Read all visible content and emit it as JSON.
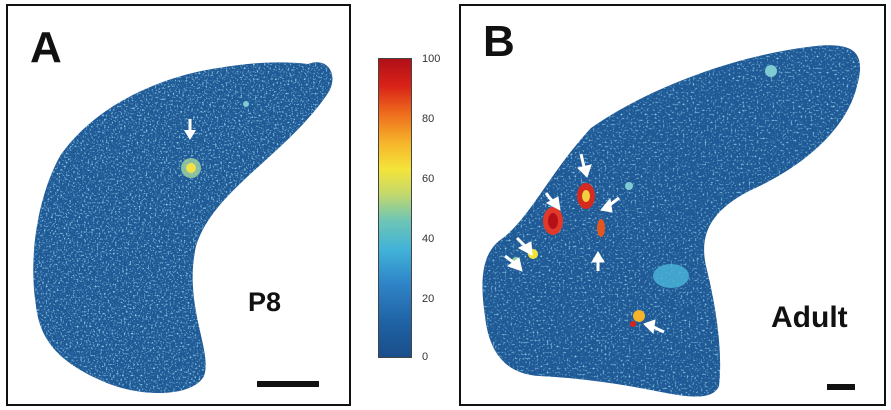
{
  "colorbar": {
    "ticks": [
      "100",
      "80",
      "60",
      "40",
      "20",
      "0"
    ],
    "colors": [
      "#1a4e8a",
      "#2f86c8",
      "#6fc6b4",
      "#f4e43a",
      "#ee6a1c",
      "#b01018"
    ]
  },
  "panels": [
    {
      "letter": "A",
      "age": "P8"
    },
    {
      "letter": "B",
      "age": "Adult"
    }
  ]
}
